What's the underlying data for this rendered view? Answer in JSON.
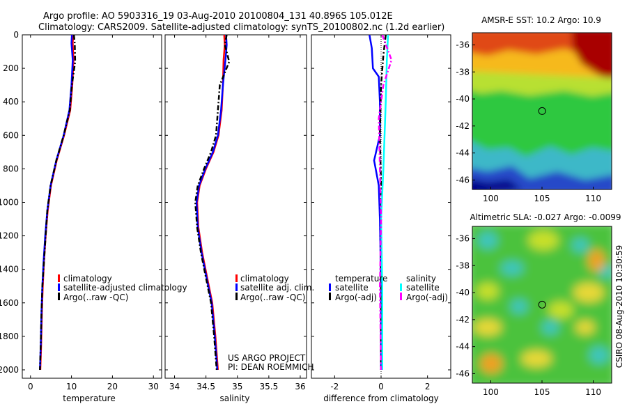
{
  "header": {
    "line1": "Argo profile: AO 5903316_19 03-Aug-2010 20100804_131 40.896S 105.012E",
    "line2": "Climatology: CARS2009. Satellite-adjusted climatology: synTS_20100802.nc (1.2d earlier)"
  },
  "chart_data": [
    {
      "type": "line",
      "name": "temperature-profile",
      "xlabel": "temperature",
      "ylabel": "",
      "xlim": [
        -2,
        32
      ],
      "ylim": [
        2050,
        0
      ],
      "y_reversed": true,
      "xticks": [
        0,
        10,
        20,
        30
      ],
      "yticks": [
        0,
        200,
        400,
        600,
        800,
        1000,
        1200,
        1400,
        1600,
        1800,
        2000
      ],
      "legend": {
        "placement": "center-left",
        "entries": [
          "climatology",
          "satellite-adjusted climatology",
          "Argo(..raw -QC)"
        ]
      },
      "series": [
        {
          "name": "climatology",
          "color": "#ff0000",
          "dash": "solid",
          "x": [
            10.4,
            10.3,
            10.5,
            10.2,
            9.7,
            8.2,
            6.4,
            5.0,
            4.2,
            3.7,
            3.3,
            3.0,
            2.8,
            2.6,
            2.4
          ],
          "y": [
            0,
            50,
            150,
            300,
            450,
            600,
            750,
            900,
            1050,
            1200,
            1350,
            1500,
            1650,
            1850,
            2000
          ]
        },
        {
          "name": "satellite-adjusted climatology",
          "color": "#0000ff",
          "dash": "solid",
          "x": [
            10.1,
            10.0,
            10.3,
            10.0,
            9.5,
            8.1,
            6.3,
            4.9,
            4.1,
            3.6,
            3.2,
            2.9,
            2.7,
            2.5,
            2.3
          ],
          "y": [
            0,
            50,
            150,
            300,
            450,
            600,
            750,
            900,
            1050,
            1200,
            1350,
            1500,
            1650,
            1850,
            2000
          ]
        },
        {
          "name": "Argo(..raw -QC)",
          "color": "#000000",
          "dash": "dashdot",
          "x": [
            10.6,
            10.8,
            10.9,
            10.1,
            9.6,
            8.1,
            6.3,
            4.9,
            4.1,
            3.7,
            3.3,
            2.9,
            2.7,
            2.5,
            2.3
          ],
          "y": [
            0,
            50,
            160,
            300,
            450,
            600,
            750,
            900,
            1050,
            1200,
            1350,
            1500,
            1650,
            1850,
            2000
          ]
        }
      ]
    },
    {
      "type": "line",
      "name": "salinity-profile",
      "xlabel": "salinity",
      "ylabel": "",
      "xlim": [
        33.85,
        36.1
      ],
      "ylim": [
        2050,
        0
      ],
      "y_reversed": true,
      "xticks": [
        34,
        34.5,
        35,
        35.5,
        36
      ],
      "xtick_labels": [
        "34",
        "34.5",
        "35",
        "35.5",
        "36"
      ],
      "legend": {
        "placement": "center-right",
        "entries": [
          "climatology",
          "satellite adj. clim.",
          "Argo(..raw -QC)"
        ]
      },
      "annotation": [
        "US ARGO PROJECT",
        "PI: DEAN ROEMMICH"
      ],
      "series": [
        {
          "name": "climatology",
          "color": "#ff0000",
          "dash": "solid",
          "x": [
            34.79,
            34.8,
            34.78,
            34.77,
            34.75,
            34.7,
            34.62,
            34.5,
            34.4,
            34.36,
            34.38,
            34.44,
            34.52,
            34.6,
            34.65,
            34.69
          ],
          "y": [
            0,
            60,
            150,
            300,
            450,
            600,
            700,
            800,
            900,
            1000,
            1150,
            1300,
            1450,
            1600,
            1800,
            2000
          ]
        },
        {
          "name": "satellite adj. clim.",
          "color": "#0000ff",
          "dash": "solid",
          "x": [
            34.82,
            34.83,
            34.81,
            34.77,
            34.74,
            34.69,
            34.61,
            34.49,
            34.39,
            34.35,
            34.37,
            34.43,
            34.51,
            34.59,
            34.64,
            34.68
          ],
          "y": [
            0,
            60,
            150,
            300,
            450,
            600,
            700,
            800,
            900,
            1000,
            1150,
            1300,
            1450,
            1600,
            1800,
            2000
          ]
        },
        {
          "name": "Argo(..raw -QC)",
          "color": "#000000",
          "dash": "dashdot",
          "x": [
            34.83,
            34.8,
            34.87,
            34.72,
            34.69,
            34.66,
            34.58,
            34.47,
            34.37,
            34.33,
            34.36,
            34.42,
            34.5,
            34.58,
            34.63,
            34.67
          ],
          "y": [
            0,
            60,
            160,
            300,
            450,
            600,
            700,
            800,
            900,
            1000,
            1150,
            1300,
            1450,
            1600,
            1800,
            2000
          ]
        }
      ]
    },
    {
      "type": "line",
      "name": "difference-profile",
      "xlabel": "difference from climatology",
      "ylabel": "",
      "xlim": [
        -3,
        3
      ],
      "ylim": [
        2050,
        0
      ],
      "y_reversed": true,
      "xticks": [
        -2,
        0,
        2
      ],
      "legend": {
        "placement": "center",
        "groups": [
          "temperature",
          "salinity"
        ],
        "entries": [
          "satellite",
          "Argo(-adj)",
          "satellite",
          "Argo(-adj)"
        ]
      },
      "series": [
        {
          "name": "temperature satellite",
          "color": "#0000ff",
          "dash": "solid",
          "x": [
            -0.5,
            -0.4,
            -0.35,
            -0.1,
            -0.05,
            -0.05,
            -0.3,
            -0.1,
            -0.05,
            0.0,
            0.0
          ],
          "y": [
            0,
            80,
            200,
            250,
            400,
            600,
            750,
            900,
            1100,
            1500,
            2000
          ]
        },
        {
          "name": "temperature Argo(-adj)",
          "color": "#000000",
          "dash": "dashdot",
          "x": [
            0.2,
            0.1,
            0.0,
            -0.05,
            0.0,
            0.0,
            0.0
          ],
          "y": [
            0,
            120,
            300,
            600,
            900,
            1400,
            2000
          ]
        },
        {
          "name": "salinity satellite",
          "color": "#00ffff",
          "dash": "solid",
          "x": [
            0.3,
            0.25,
            0.2,
            0.15,
            0.1,
            0.0,
            0.05,
            0.05
          ],
          "y": [
            0,
            150,
            400,
            600,
            800,
            1100,
            1500,
            2000
          ]
        },
        {
          "name": "salinity Argo(-adj)",
          "color": "#ff00ff",
          "dash": "dashdot",
          "x": [
            0.05,
            0.45,
            0.1,
            -0.1,
            -0.05,
            0.0,
            -0.05,
            0.0
          ],
          "y": [
            0,
            150,
            300,
            500,
            800,
            1100,
            1500,
            2000
          ]
        }
      ]
    },
    {
      "type": "heatmap",
      "name": "sst-map",
      "title": "AMSR-E SST: 10.2 Argo: 10.9",
      "xlim": [
        98.2,
        111.8
      ],
      "ylim": [
        -46.7,
        -35.1
      ],
      "xticks": [
        100,
        105,
        110
      ],
      "yticks": [
        -36,
        -38,
        -40,
        -42,
        -44,
        -46
      ],
      "marker": {
        "lon": 105.012,
        "lat": -40.896
      }
    },
    {
      "type": "heatmap",
      "name": "sla-map",
      "title": "Altimetric SLA: -0.027 Argo: -0.0099",
      "xlim": [
        98.2,
        111.8
      ],
      "ylim": [
        -46.7,
        -35.1
      ],
      "xticks": [
        100,
        105,
        110
      ],
      "yticks": [
        -36,
        -38,
        -40,
        -42,
        -44,
        -46
      ],
      "marker": {
        "lon": 105.012,
        "lat": -40.896
      }
    }
  ],
  "footer": {
    "credit": "CSIRO 08-Aug-2010 10:30:59"
  }
}
